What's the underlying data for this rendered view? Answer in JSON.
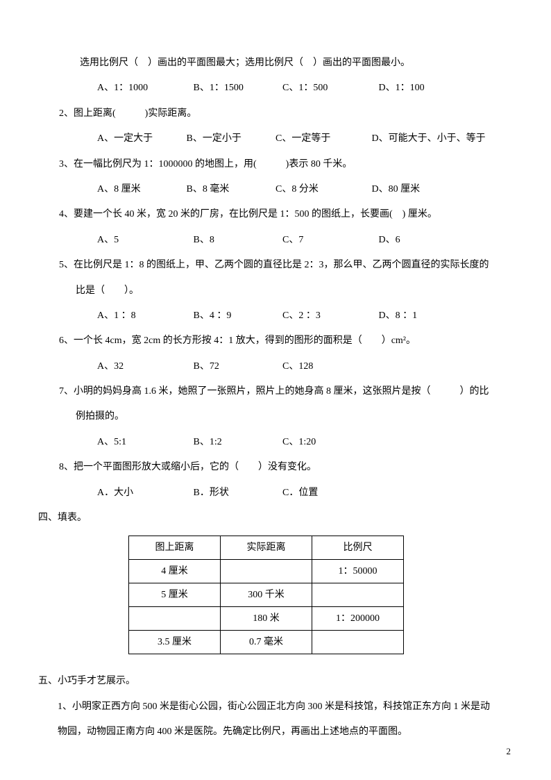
{
  "q1_stem": "选用比例尺（　）画出的平面图最大；选用比例尺（　）画出的平面图最小。",
  "q1_optA": "A、1：1000",
  "q1_optB": "B、1：1500",
  "q1_optC": "C、1：500",
  "q1_optD": "D、1：100",
  "q2_stem": "2、图上距离(　　　)实际距离。",
  "q2_optA": "A、一定大于",
  "q2_optB": "B、一定小于",
  "q2_optC": "C、一定等于",
  "q2_optD": "D、可能大于、小于、等于",
  "q3_stem": "3、在一幅比例尺为 1：1000000 的地图上，用(　　　)表示 80 千米。",
  "q3_optA": "A、8 厘米",
  "q3_optB": "B、8 毫米",
  "q3_optC": "C、8 分米",
  "q3_optD": "D、80 厘米",
  "q4_stem": "4、要建一个长 40 米，宽 20 米的厂房，在比例尺是 1：500 的图纸上，长要画(　) 厘米。",
  "q4_optA": "A、5",
  "q4_optB": "B、8",
  "q4_optC": "C、7",
  "q4_optD": "D、6",
  "q5_stem": "5、在比例尺是 1：8 的图纸上，甲、乙两个圆的直径比是 2：3，那么甲、乙两个圆直径的实际长度的",
  "q5_cont": "比是（　　）。",
  "q5_optA": "A、1 ：8",
  "q5_optB": "B、4 ：9",
  "q5_optC": "C、2 ：3",
  "q5_optD": "D、8 ：1",
  "q6_stem": "6、一个长 4cm，宽 2cm 的长方形按 4：1 放大，得到的图形的面积是（　　）cm²。",
  "q6_optA": "A、32",
  "q6_optB": "B、72",
  "q6_optC": "C、128",
  "q7_stem": "7、小明的妈妈身高 1.6 米，她照了一张照片，照片上的她身高 8 厘米，这张照片是按（　　　）的比",
  "q7_cont": "例拍摄的。",
  "q7_optA": "A、5:1",
  "q7_optB": "B、1:2",
  "q7_optC": "C、1:20",
  "q8_stem": "8、把一个平面图形放大或缩小后，它的（　　）没有变化。",
  "q8_optA": "A．大小",
  "q8_optB": "B．形状",
  "q8_optC": "C．位置",
  "sec4_title": "四、填表。",
  "table": {
    "header": [
      "图上距离",
      "实际距离",
      "比例尺"
    ],
    "rows": [
      [
        "4 厘米",
        "",
        "1：50000"
      ],
      [
        "5 厘米",
        "300 千米",
        ""
      ],
      [
        "",
        "180 米",
        "1：200000"
      ],
      [
        "3.5 厘米",
        "0.7 毫米",
        ""
      ]
    ]
  },
  "sec5_title": "五、小巧手才艺展示。",
  "q5_1_line1": "1、小明家正西方向 500 米是街心公园，街心公园正北方向 300 米是科技馆，科技馆正东方向 1 米是动",
  "q5_1_line2": "物园，动物园正南方向 400 米是医院。先确定比例尺，再画出上述地点的平面图。",
  "page_number": "2"
}
